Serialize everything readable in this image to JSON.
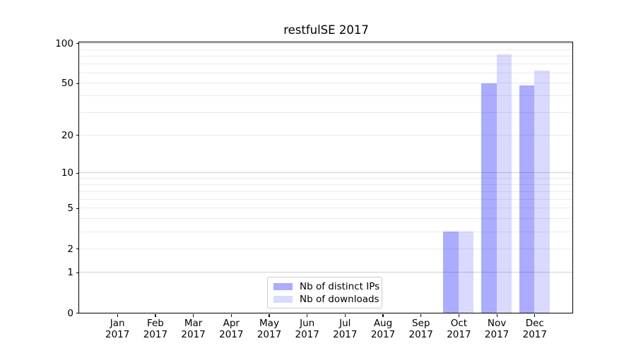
{
  "chart_data": {
    "type": "bar",
    "title": "restfulSE 2017",
    "categories": [
      "Jan",
      "Feb",
      "Mar",
      "Apr",
      "May",
      "Jun",
      "Jul",
      "Aug",
      "Sep",
      "Oct",
      "Nov",
      "Dec"
    ],
    "x_year_label": "2017",
    "series": [
      {
        "name": "Nb of distinct IPs",
        "color": "rgba(0,0,255,0.33)",
        "values": [
          0,
          0,
          0,
          0,
          0,
          0,
          0,
          0,
          0,
          3,
          50,
          48
        ]
      },
      {
        "name": "Nb of downloads",
        "color": "rgba(0,0,255,0.145)",
        "values": [
          0,
          0,
          0,
          0,
          0,
          0,
          0,
          0,
          0,
          3,
          83,
          62
        ]
      }
    ],
    "y_axis": {
      "scale": "log1p",
      "ylim": [
        0,
        100
      ],
      "tick_labels": [
        100,
        50,
        20,
        10,
        5,
        2,
        1,
        0
      ],
      "major_gridlines": [
        1,
        10,
        100
      ],
      "minor_gridlines": [
        2,
        3,
        4,
        5,
        6,
        7,
        8,
        9,
        20,
        30,
        40,
        50,
        60,
        70,
        80,
        90
      ]
    },
    "legend_position": "bottom-center",
    "grid": true
  },
  "colors": {
    "spine": "#000000",
    "major_grid": "#d0d0d0",
    "minor_grid": "#ebebeb",
    "legend_border": "#cccccc"
  }
}
